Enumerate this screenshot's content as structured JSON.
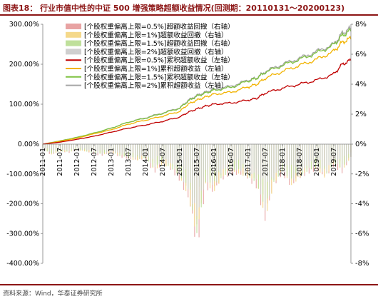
{
  "header": {
    "label": "图表18：",
    "title": "行业市值中性的中证 500 增强策略超额收益情况(回测期：20110131～20200123)"
  },
  "source": "资料来源：Wind，华泰证券研究所",
  "colors": {
    "brand": "#8c1515",
    "s05": "#c00000",
    "s1": "#f2b300",
    "s15": "#7fc241",
    "s2": "#a6a6a6",
    "dd05": "#e8a3a3",
    "dd1": "#f5d98a",
    "dd15": "#bfe09b",
    "dd2": "#cfcfcf"
  },
  "chart_data": {
    "type": "line",
    "title": "",
    "x_range": [
      "2011-01",
      "2020-01"
    ],
    "x_ticks": [
      "2011-01",
      "2011-07",
      "2012-01",
      "2012-07",
      "2013-01",
      "2013-07",
      "2014-01",
      "2014-07",
      "2015-01",
      "2015-07",
      "2016-01",
      "2016-07",
      "2017-01",
      "2017-07",
      "2018-01",
      "2018-07",
      "2019-01",
      "2019-07"
    ],
    "y_left": {
      "ticks": [
        "-400.00%",
        "-300.00%",
        "-200.00%",
        "-100.00%",
        "0.00%",
        "100.00%",
        "200.00%",
        "300.00%"
      ],
      "range": [
        -400,
        300
      ]
    },
    "y_right": {
      "ticks": [
        "-8%",
        "-6%",
        "-4%",
        "-2%",
        "0%",
        "2%",
        "4%",
        "6%",
        "8%"
      ],
      "range": [
        -8,
        8
      ]
    },
    "legend": [
      "[个股权重偏离上限=0.5%]超额收益回撤（右轴）",
      "[个股权重偏离上限=1%]超额收益回撤（右轴）",
      "[个股权重偏离上限=1.5%]超额收益回撤（右轴）",
      "[个股权重偏离上限=2%]超额收益回撤（右轴）",
      "[个股权重偏离上限=0.5%]累积超额收益（左轴）",
      "[个股权重偏离上限=1%]累积超额收益（左轴）",
      "[个股权重偏离上限=1.5%]累积超额收益（左轴）",
      "[个股权重偏离上限=2%]累积超额收益（左轴）"
    ],
    "legend_placement": "top-left",
    "excess_return_dates": [
      "2011-01",
      "2011-07",
      "2012-01",
      "2012-07",
      "2013-01",
      "2013-07",
      "2014-01",
      "2014-07",
      "2015-01",
      "2015-04",
      "2015-07",
      "2015-10",
      "2016-01",
      "2016-07",
      "2017-01",
      "2017-04",
      "2017-07",
      "2018-01",
      "2018-07",
      "2019-01",
      "2019-07",
      "2019-10",
      "2020-01"
    ],
    "excess_return_series": [
      {
        "name": "[个股权重偏离上限=0.5%]累积超额收益（左轴）",
        "values": [
          0,
          5,
          12,
          20,
          30,
          40,
          48,
          57,
          68,
          80,
          88,
          95,
          100,
          103,
          110,
          115,
          128,
          140,
          150,
          160,
          175,
          200,
          210
        ]
      },
      {
        "name": "[个股权重偏离上限=1%]累积超额收益（左轴）",
        "values": [
          0,
          7,
          15,
          26,
          36,
          50,
          60,
          70,
          82,
          100,
          110,
          118,
          125,
          130,
          143,
          150,
          165,
          182,
          197,
          212,
          232,
          255,
          265
        ]
      },
      {
        "name": "[个股权重偏离上限=1.5%]累积超额收益（左轴）",
        "values": [
          0,
          8,
          17,
          28,
          40,
          55,
          65,
          77,
          90,
          108,
          120,
          128,
          135,
          142,
          158,
          165,
          180,
          197,
          212,
          228,
          248,
          272,
          285
        ]
      },
      {
        "name": "[个股权重偏离上限=2%]累积超额收益（左轴）",
        "values": [
          0,
          8,
          17,
          27,
          40,
          55,
          66,
          78,
          91,
          110,
          122,
          130,
          137,
          145,
          160,
          166,
          182,
          200,
          215,
          232,
          250,
          278,
          290
        ]
      }
    ],
    "drawdown_dates": [
      "2011-01",
      "2011-04",
      "2011-07",
      "2011-10",
      "2012-01",
      "2012-04",
      "2012-07",
      "2012-10",
      "2013-01",
      "2013-04",
      "2013-07",
      "2013-10",
      "2014-01",
      "2014-04",
      "2014-07",
      "2014-10",
      "2015-01",
      "2015-04",
      "2015-07",
      "2015-10",
      "2016-01",
      "2016-04",
      "2016-07",
      "2016-10",
      "2017-01",
      "2017-04",
      "2017-07",
      "2017-10",
      "2018-01",
      "2018-04",
      "2018-07",
      "2018-10",
      "2019-01",
      "2019-04",
      "2019-07",
      "2019-10",
      "2020-01"
    ],
    "drawdown_series": [
      {
        "name": "[个股权重偏离上限=0.5%]超额收益回撤（右轴）",
        "values": [
          -0.3,
          -0.8,
          -0.5,
          -0.6,
          -0.4,
          -0.5,
          -0.7,
          -0.8,
          -0.6,
          -0.9,
          -1.0,
          -1.2,
          -1.0,
          -2.0,
          -1.5,
          -1.8,
          -2.5,
          -4.0,
          -7.5,
          -3.0,
          -3.5,
          -2.5,
          -2.0,
          -2.2,
          -2.5,
          -3.0,
          -5.5,
          -3.0,
          -2.0,
          -3.0,
          -2.5,
          -2.0,
          -1.8,
          -2.5,
          -1.5,
          -2.0,
          -1.0
        ]
      },
      {
        "name": "[个股权重偏离上限=1%]超额收益回撤（右轴）",
        "values": [
          -0.3,
          -0.7,
          -0.5,
          -0.6,
          -0.4,
          -0.5,
          -0.6,
          -0.7,
          -0.6,
          -0.8,
          -1.0,
          -1.1,
          -1.0,
          -1.8,
          -1.4,
          -1.7,
          -2.3,
          -3.5,
          -6.5,
          -2.8,
          -3.2,
          -2.3,
          -1.9,
          -2.0,
          -2.3,
          -2.8,
          -5.0,
          -2.8,
          -1.9,
          -2.8,
          -2.3,
          -1.9,
          -1.7,
          -2.3,
          -1.4,
          -1.8,
          -0.9
        ]
      },
      {
        "name": "[个股权重偏离上限=1.5%]超额收益回撤（右轴）",
        "values": [
          -0.3,
          -0.7,
          -0.5,
          -0.5,
          -0.4,
          -0.5,
          -0.6,
          -0.7,
          -0.5,
          -0.8,
          -0.9,
          -1.1,
          -0.9,
          -1.7,
          -1.3,
          -1.6,
          -2.2,
          -3.3,
          -6.0,
          -2.6,
          -3.0,
          -2.2,
          -1.8,
          -1.9,
          -2.2,
          -2.6,
          -4.8,
          -2.6,
          -1.8,
          -2.6,
          -2.2,
          -1.8,
          -1.6,
          -2.2,
          -1.3,
          -1.7,
          -0.9
        ]
      },
      {
        "name": "[个股权重偏离上限=2%]超额收益回撤（右轴）",
        "values": [
          -0.3,
          -0.6,
          -0.4,
          -0.5,
          -0.4,
          -0.4,
          -0.6,
          -0.7,
          -0.5,
          -0.7,
          -0.9,
          -1.0,
          -0.9,
          -1.6,
          -1.2,
          -1.5,
          -2.1,
          -3.1,
          -5.5,
          -2.5,
          -2.8,
          -2.0,
          -1.7,
          -1.8,
          -2.1,
          -2.5,
          -4.5,
          -2.5,
          -1.7,
          -2.5,
          -2.1,
          -1.7,
          -1.5,
          -2.1,
          -1.2,
          -1.6,
          -0.8
        ]
      }
    ]
  }
}
